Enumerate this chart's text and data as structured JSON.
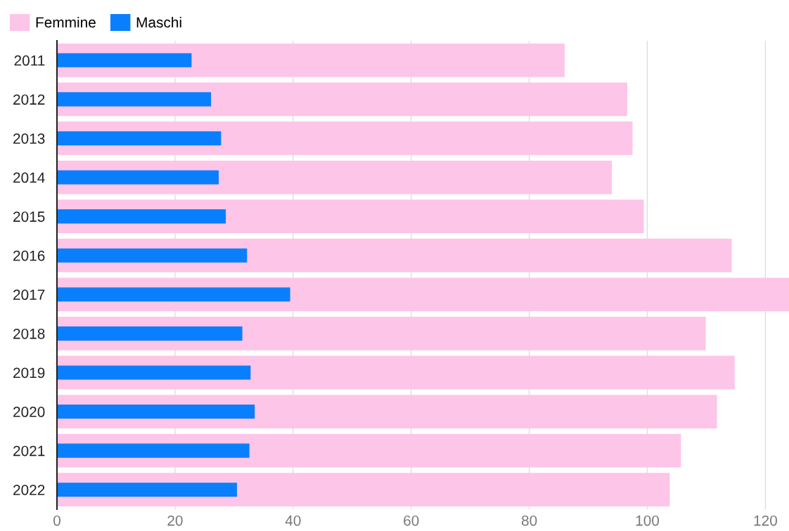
{
  "chart_data": {
    "type": "bar",
    "orientation": "horizontal",
    "categories": [
      "2011",
      "2012",
      "2013",
      "2014",
      "2015",
      "2016",
      "2017",
      "2018",
      "2019",
      "2020",
      "2021",
      "2022"
    ],
    "series": [
      {
        "name": "Femmine",
        "color": "#fdc5e8",
        "values": [
          86.0,
          96.6,
          97.5,
          94.0,
          99.4,
          114.3,
          124,
          109.9,
          114.8,
          111.8,
          105.7,
          103.8
        ]
      },
      {
        "name": "Maschi",
        "color": "#0a7ffd",
        "values": [
          22.8,
          26.1,
          27.8,
          27.4,
          28.6,
          32.2,
          39.5,
          31.4,
          32.8,
          33.5,
          32.6,
          30.5
        ]
      }
    ],
    "xlim": [
      0,
      124
    ],
    "xticks": [
      0,
      20,
      40,
      60,
      80,
      100,
      120
    ],
    "grid": "x",
    "legend": "top left"
  }
}
